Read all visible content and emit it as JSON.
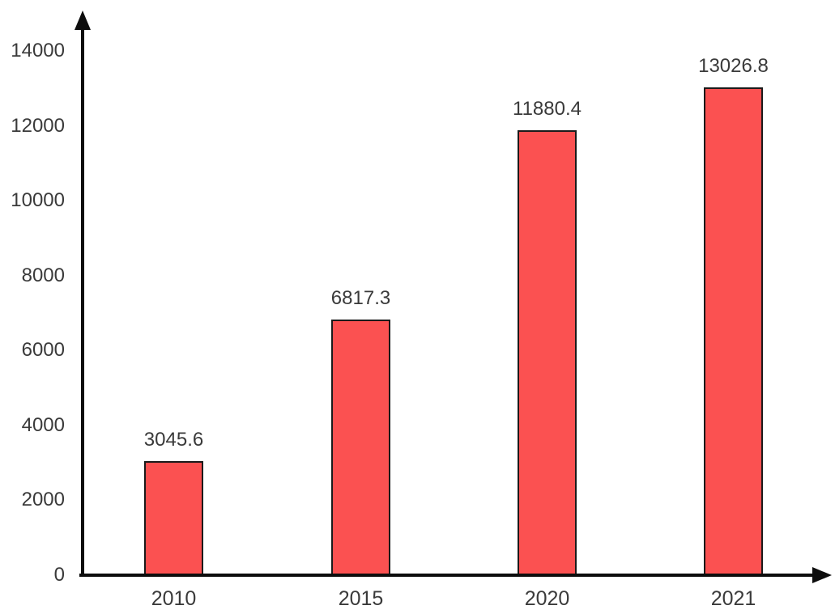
{
  "chart_data": {
    "type": "bar",
    "categories": [
      "2010",
      "2015",
      "2020",
      "2021"
    ],
    "values": [
      3045.6,
      6817.3,
      11880.4,
      13026.8
    ],
    "value_labels": [
      "3045.6",
      "6817.3",
      "11880.4",
      "13026.8"
    ],
    "title": "",
    "xlabel": "",
    "ylabel": "",
    "ylim": [
      0,
      14000
    ],
    "yticks": [
      0,
      2000,
      4000,
      6000,
      8000,
      10000,
      12000,
      14000
    ],
    "grid": false,
    "legend": false,
    "colors": {
      "bar_fill": "#fb5151",
      "bar_border": "#1a1a1a",
      "axis": "#0d0d0d",
      "text": "#3a3a3a",
      "background": "#ffffff"
    }
  }
}
